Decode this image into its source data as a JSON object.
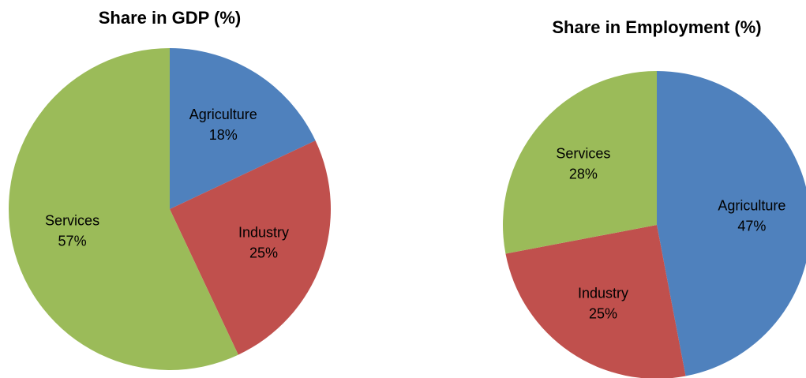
{
  "chart_data": [
    {
      "type": "pie",
      "title": "Share in GDP (%)",
      "categories": [
        "Agriculture",
        "Industry",
        "Services"
      ],
      "values": [
        18,
        25,
        57
      ],
      "value_labels": [
        "18%",
        "25%",
        "57%"
      ],
      "colors": [
        "#4f81bd",
        "#c0504d",
        "#9bbb59"
      ]
    },
    {
      "type": "pie",
      "title": "Share in Employment (%)",
      "categories": [
        "Agriculture",
        "Industry",
        "Services"
      ],
      "values": [
        47,
        25,
        28
      ],
      "value_labels": [
        "47%",
        "25%",
        "28%"
      ],
      "colors": [
        "#4f81bd",
        "#c0504d",
        "#9bbb59"
      ]
    }
  ]
}
